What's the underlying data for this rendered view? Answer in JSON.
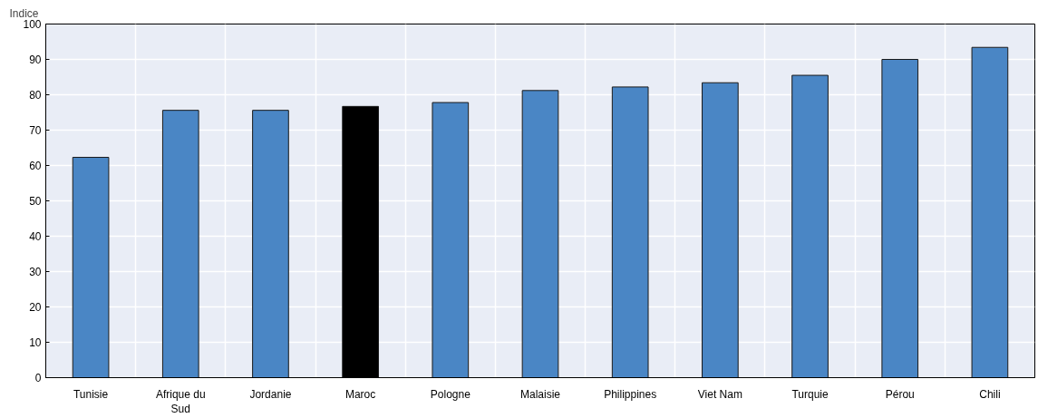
{
  "chart_data": {
    "type": "bar",
    "ylabel": "Indice",
    "categories": [
      "Tunisie",
      "Afrique du Sud",
      "Jordanie",
      "Maroc",
      "Pologne",
      "Malaisie",
      "Philippines",
      "Viet Nam",
      "Turquie",
      "Pérou",
      "Chili"
    ],
    "values": [
      62.3,
      75.6,
      75.6,
      76.7,
      77.8,
      81.2,
      82.2,
      83.4,
      85.5,
      90.0,
      93.4
    ],
    "colors": [
      "#4a86c5",
      "#4a86c5",
      "#4a86c5",
      "#000000",
      "#4a86c5",
      "#4a86c5",
      "#4a86c5",
      "#4a86c5",
      "#4a86c5",
      "#4a86c5",
      "#4a86c5"
    ],
    "ylim": [
      0,
      100
    ],
    "yticks": [
      0,
      10,
      20,
      30,
      40,
      50,
      60,
      70,
      80,
      90,
      100
    ],
    "grid": true
  }
}
